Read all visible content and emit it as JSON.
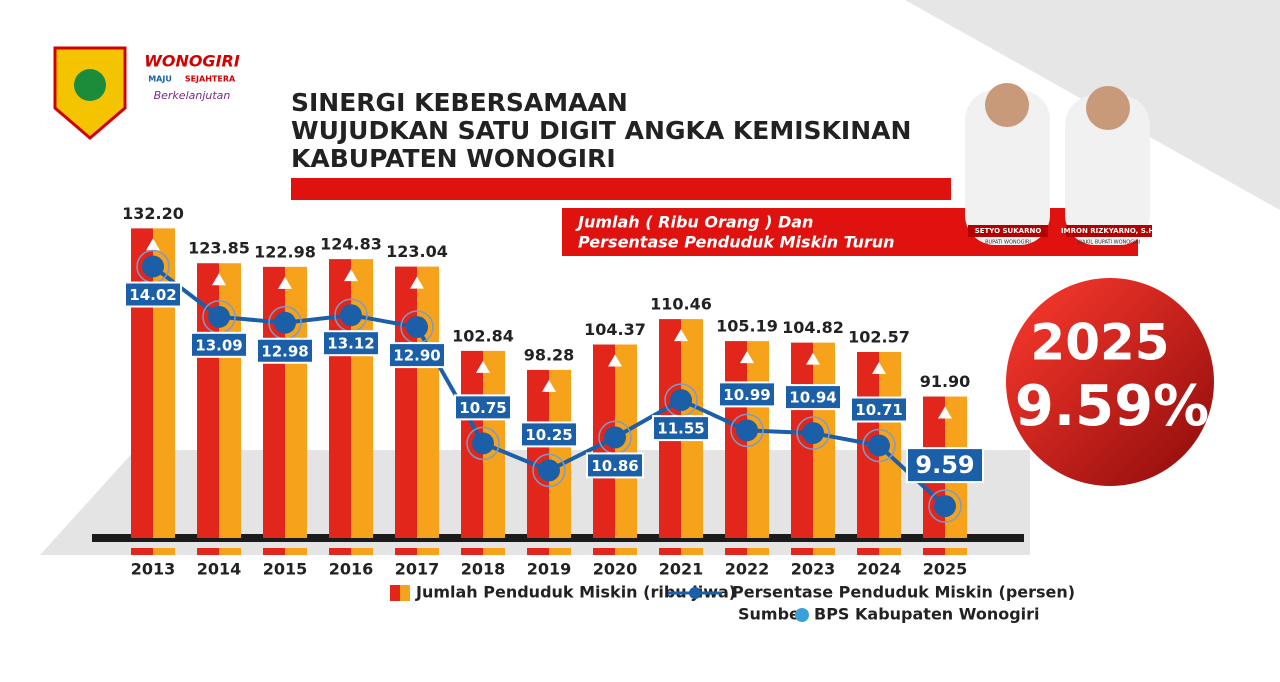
{
  "logo": {
    "name": "WONOGIRI",
    "tag1": "MAJU",
    "tag2": "SEJAHTERA",
    "tag3": "Berkelanjutan"
  },
  "officials": [
    {
      "name": "SETYO SUKARNO",
      "role": "BUPATI WONOGIRI"
    },
    {
      "name": "IMRON RIZKYARNO, S.H.",
      "role": "WAKIL BUPATI WONOGIRI"
    }
  ],
  "chart_data": {
    "type": "combo",
    "title": [
      "SINERGI KEBERSAMAAN",
      "WUJUDKAN SATU DIGIT ANGKA KEMISKINAN",
      "KABUPATEN WONOGIRI"
    ],
    "subtitle": [
      "Jumlah ( Ribu Orang ) Dan",
      "Persentase Penduduk Miskin Turun"
    ],
    "highlight": {
      "year": "2025",
      "value": "9.59%"
    },
    "categories": [
      "2013",
      "2014",
      "2015",
      "2016",
      "2017",
      "2018",
      "2019",
      "2020",
      "2021",
      "2022",
      "2023",
      "2024",
      "2025"
    ],
    "series": [
      {
        "name": "Jumlah Penduduk Miskin (ribu jiwa)",
        "color": "#e3261b",
        "color2": "#f7a21b",
        "values": [
          132.2,
          123.85,
          122.98,
          124.83,
          123.04,
          102.84,
          98.28,
          104.37,
          110.46,
          105.19,
          104.82,
          102.57,
          91.9
        ],
        "value_labels": [
          "132.20",
          "123.85",
          "122.98",
          "124.83",
          "123.04",
          "102.84",
          "98.28",
          "104.37",
          "110.46",
          "105.19",
          "104.82",
          "102.57",
          "91.90"
        ]
      },
      {
        "name": "Persentase Penduduk Miskin (persen)",
        "color": "#1a5fa8",
        "axis": "y2",
        "values": [
          14.02,
          13.09,
          12.98,
          13.12,
          12.9,
          10.75,
          10.25,
          10.86,
          11.55,
          10.99,
          10.94,
          10.71,
          9.59
        ],
        "value_labels": [
          "14.02",
          "13.09",
          "12.98",
          "13.12",
          "12.90",
          "10.75",
          "10.25",
          "10.86",
          "11.55",
          "10.99",
          "10.94",
          "10.71",
          "9.59"
        ]
      }
    ],
    "ylim": [
      58,
      139
    ],
    "y2lim": [
      9,
      15.25
    ],
    "source_label": "Sumber",
    "source": "BPS Kabupaten Wonogiri"
  }
}
